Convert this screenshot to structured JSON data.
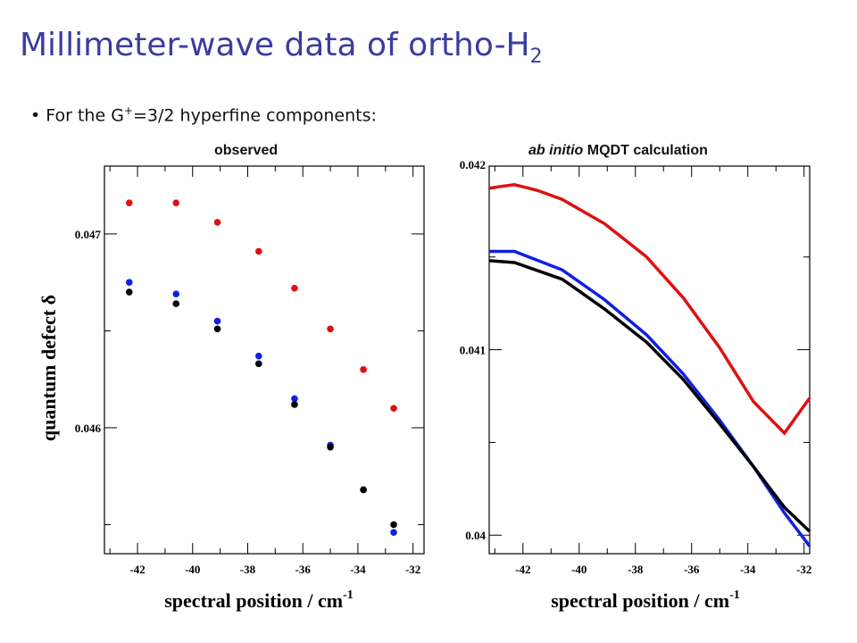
{
  "slide": {
    "title": "Millimeter-wave data of ortho-H",
    "title_subscript": "2",
    "bullet_prefix": "For the G",
    "bullet_superscript": "+",
    "bullet_suffix": "=3/2 hyperfine components:"
  },
  "colors": {
    "title": "#3c3ca0",
    "red": "#e01010",
    "blue": "#1020e0",
    "black": "#000000"
  },
  "chart_data": [
    {
      "type": "scatter",
      "title": "observed",
      "xlabel": "spectral position / cm",
      "xlabel_superscript": "-1",
      "ylabel": "quantum defect δ",
      "xlim": [
        -43.2,
        -31.6
      ],
      "ylim": [
        0.04535,
        0.04735
      ],
      "xticks": [
        -42,
        -40,
        -38,
        -36,
        -34,
        -32
      ],
      "xtick_labels": [
        "-42",
        "-40",
        "-38",
        "-36",
        "-34",
        "-32"
      ],
      "yticks": [
        0.046,
        0.047
      ],
      "ytick_labels": [
        "0.046",
        "0.047"
      ],
      "grid": false,
      "series": [
        {
          "color": "red",
          "x": [
            -42.3,
            -40.6,
            -39.1,
            -37.6,
            -36.3,
            -35.0,
            -33.8,
            -32.7
          ],
          "y": [
            0.04716,
            0.04716,
            0.04706,
            0.04691,
            0.04672,
            0.04651,
            0.0463,
            0.0461
          ]
        },
        {
          "color": "blue",
          "x": [
            -42.3,
            -40.6,
            -39.1,
            -37.6,
            -36.3,
            -35.0,
            -33.8,
            -32.7
          ],
          "y": [
            0.04675,
            0.04669,
            0.04655,
            0.04637,
            0.04615,
            0.04591,
            0.04568,
            0.04546
          ]
        },
        {
          "color": "black",
          "x": [
            -42.3,
            -40.6,
            -39.1,
            -37.6,
            -36.3,
            -35.0,
            -33.8,
            -32.7
          ],
          "y": [
            0.0467,
            0.04664,
            0.04651,
            0.04633,
            0.04612,
            0.0459,
            0.04568,
            0.0455
          ]
        }
      ]
    },
    {
      "type": "line",
      "title": "ab initio MQDT calculation",
      "title_italic": "ab initio",
      "title_rest": "MQDT calculation",
      "xlabel": "spectral position / cm",
      "xlabel_superscript": "-1",
      "xlim": [
        -43.2,
        -31.8
      ],
      "ylim": [
        0.0399,
        0.04199
      ],
      "xticks": [
        -42,
        -40,
        -38,
        -36,
        -34,
        -32
      ],
      "xtick_labels": [
        "-42",
        "-40",
        "-38",
        "-36",
        "-34",
        "-32"
      ],
      "yticks": [
        0.04,
        0.041,
        0.042
      ],
      "ytick_labels": [
        "0.04",
        "0.041",
        "0.042"
      ],
      "grid": false,
      "series": [
        {
          "color": "red",
          "x": [
            -43.2,
            -42.8,
            -42.3,
            -41.5,
            -40.6,
            -39.1,
            -37.6,
            -36.3,
            -35.0,
            -33.8,
            -32.7,
            -31.8
          ],
          "y": [
            0.04187,
            0.04188,
            0.04189,
            0.04186,
            0.04181,
            0.04168,
            0.0415,
            0.04128,
            0.04101,
            0.04072,
            0.04055,
            0.04074
          ]
        },
        {
          "color": "blue",
          "x": [
            -43.2,
            -42.3,
            -40.6,
            -39.1,
            -37.6,
            -36.3,
            -35.0,
            -33.8,
            -32.7,
            -31.8
          ],
          "y": [
            0.04153,
            0.04153,
            0.04143,
            0.04127,
            0.04108,
            0.04087,
            0.04062,
            0.04037,
            0.04012,
            0.03994
          ]
        },
        {
          "color": "black",
          "x": [
            -43.2,
            -42.3,
            -40.6,
            -39.1,
            -37.6,
            -36.3,
            -35.0,
            -33.8,
            -32.7,
            -31.8
          ],
          "y": [
            0.04148,
            0.04147,
            0.04138,
            0.04122,
            0.04104,
            0.04084,
            0.0406,
            0.04037,
            0.04015,
            0.04002
          ]
        }
      ]
    }
  ]
}
